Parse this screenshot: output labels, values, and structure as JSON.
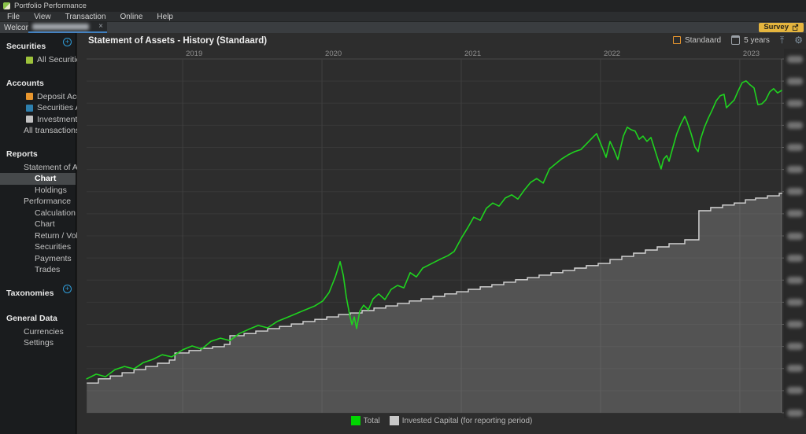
{
  "window": {
    "title": "Portfolio Performance"
  },
  "menu": {
    "items": [
      "File",
      "View",
      "Transaction",
      "Online",
      "Help"
    ]
  },
  "tabs": {
    "welcome_label": "Welcome",
    "active_tab": {
      "label_redacted": true,
      "close_glyph": "×"
    },
    "survey_button": {
      "label": "Survey"
    }
  },
  "sidebar": {
    "sections": [
      {
        "title": "Securities",
        "add_button": true,
        "items": [
          {
            "label": "All Securities",
            "icon": "security-icon",
            "icon_color": "#9dc23b",
            "indent": 1
          }
        ]
      },
      {
        "title": "Accounts",
        "add_button": false,
        "items": [
          {
            "label": "Deposit Accounts",
            "icon": "deposit-account-icon",
            "icon_color": "#e8962e",
            "indent": 1
          },
          {
            "label": "Securities Accounts",
            "icon": "securities-account-icon",
            "icon_color": "#2e80ae",
            "indent": 1
          },
          {
            "label": "Investment Plans",
            "icon": "investment-plan-icon",
            "icon_color": "#c2c2c2",
            "indent": 1
          },
          {
            "label": "All transactions",
            "indent": 1
          }
        ]
      },
      {
        "title": "Reports",
        "add_button": false,
        "items": [
          {
            "label": "Statement of Assets",
            "indent": 1
          },
          {
            "label": "Chart",
            "indent": 2,
            "selected": true
          },
          {
            "label": "Holdings",
            "indent": 2
          },
          {
            "label": "Performance",
            "indent": 1
          },
          {
            "label": "Calculation",
            "indent": 2
          },
          {
            "label": "Chart",
            "indent": 2
          },
          {
            "label": "Return / Volatility",
            "indent": 2
          },
          {
            "label": "Securities",
            "indent": 2
          },
          {
            "label": "Payments",
            "indent": 2
          },
          {
            "label": "Trades",
            "indent": 2
          }
        ]
      },
      {
        "title": "Taxonomies",
        "add_button": true,
        "items": []
      },
      {
        "title": "General Data",
        "add_button": false,
        "items": [
          {
            "label": "Currencies",
            "indent": 1
          },
          {
            "label": "Settings",
            "indent": 1
          }
        ]
      }
    ]
  },
  "chart_panel": {
    "title": "Statement of Assets - History (Standaard)",
    "toolbar": {
      "aggregation": {
        "label": "Standaard",
        "icon": "orange-square-icon"
      },
      "period": {
        "label": "5 years",
        "icon": "calendar-icon"
      },
      "export_icon_glyph": "⤒",
      "settings_icon_glyph": "⚙"
    },
    "legend": [
      {
        "label": "Total",
        "color": "#00d600"
      },
      {
        "label": "Invested Capital (for reporting period)",
        "color": "#c8c8c8"
      }
    ]
  },
  "chart_data": {
    "type": "line",
    "title": "Statement of Assets - History (Standaard)",
    "x_axis": {
      "position": "top",
      "labels": [
        "2019",
        "2020",
        "2021",
        "2022",
        "2023"
      ],
      "range": [
        2018.31,
        2023.3
      ]
    },
    "y_axis": {
      "position": "right",
      "labels_redacted": true,
      "tick_count": 17,
      "unit": "relative level 0-100 (axis values blurred in source)"
    },
    "grid": true,
    "series": [
      {
        "name": "Total",
        "style": "line",
        "color": "#1fd31f",
        "points": [
          [
            2018.311,
            9.6
          ],
          [
            2018.379,
            10.9
          ],
          [
            2018.446,
            10.2
          ],
          [
            2018.514,
            12.2
          ],
          [
            2018.582,
            13.1
          ],
          [
            2018.65,
            12.4
          ],
          [
            2018.718,
            14.2
          ],
          [
            2018.785,
            15.1
          ],
          [
            2018.853,
            16.4
          ],
          [
            2018.921,
            15.8
          ],
          [
            2019.0,
            17.8
          ],
          [
            2019.068,
            18.9
          ],
          [
            2019.136,
            18.0
          ],
          [
            2019.203,
            20.2
          ],
          [
            2019.271,
            21.1
          ],
          [
            2019.339,
            20.4
          ],
          [
            2019.407,
            22.4
          ],
          [
            2019.475,
            23.6
          ],
          [
            2019.542,
            24.7
          ],
          [
            2019.61,
            24.0
          ],
          [
            2019.678,
            25.8
          ],
          [
            2019.746,
            26.9
          ],
          [
            2019.814,
            28.0
          ],
          [
            2019.881,
            29.1
          ],
          [
            2019.949,
            30.2
          ],
          [
            2020.006,
            31.6
          ],
          [
            2020.051,
            34.0
          ],
          [
            2020.096,
            38.4
          ],
          [
            2020.13,
            42.7
          ],
          [
            2020.153,
            38.9
          ],
          [
            2020.175,
            32.7
          ],
          [
            2020.198,
            27.8
          ],
          [
            2020.215,
            24.9
          ],
          [
            2020.232,
            27.1
          ],
          [
            2020.249,
            23.8
          ],
          [
            2020.271,
            28.7
          ],
          [
            2020.299,
            30.4
          ],
          [
            2020.333,
            29.1
          ],
          [
            2020.367,
            32.2
          ],
          [
            2020.407,
            33.6
          ],
          [
            2020.452,
            32.0
          ],
          [
            2020.497,
            34.9
          ],
          [
            2020.542,
            36.0
          ],
          [
            2020.588,
            35.3
          ],
          [
            2020.633,
            39.6
          ],
          [
            2020.678,
            38.4
          ],
          [
            2020.723,
            40.9
          ],
          [
            2020.768,
            41.8
          ],
          [
            2020.814,
            42.7
          ],
          [
            2020.859,
            43.6
          ],
          [
            2020.904,
            44.4
          ],
          [
            2020.949,
            45.6
          ],
          [
            2021.0,
            49.3
          ],
          [
            2021.045,
            52.2
          ],
          [
            2021.09,
            55.3
          ],
          [
            2021.136,
            54.4
          ],
          [
            2021.181,
            57.8
          ],
          [
            2021.226,
            59.3
          ],
          [
            2021.271,
            58.4
          ],
          [
            2021.316,
            60.7
          ],
          [
            2021.362,
            61.6
          ],
          [
            2021.407,
            60.4
          ],
          [
            2021.452,
            62.9
          ],
          [
            2021.497,
            65.1
          ],
          [
            2021.542,
            66.2
          ],
          [
            2021.588,
            64.9
          ],
          [
            2021.633,
            68.9
          ],
          [
            2021.678,
            70.4
          ],
          [
            2021.723,
            71.8
          ],
          [
            2021.768,
            72.9
          ],
          [
            2021.814,
            73.8
          ],
          [
            2021.859,
            74.4
          ],
          [
            2021.904,
            76.2
          ],
          [
            2021.938,
            77.6
          ],
          [
            2021.972,
            78.9
          ],
          [
            2022.011,
            75.1
          ],
          [
            2022.04,
            72.2
          ],
          [
            2022.068,
            76.7
          ],
          [
            2022.096,
            74.4
          ],
          [
            2022.124,
            71.6
          ],
          [
            2022.164,
            78.2
          ],
          [
            2022.192,
            80.7
          ],
          [
            2022.22,
            80.0
          ],
          [
            2022.249,
            79.6
          ],
          [
            2022.277,
            77.3
          ],
          [
            2022.305,
            78.2
          ],
          [
            2022.333,
            76.7
          ],
          [
            2022.362,
            77.8
          ],
          [
            2022.384,
            75.1
          ],
          [
            2022.407,
            72.2
          ],
          [
            2022.435,
            68.9
          ],
          [
            2022.452,
            71.6
          ],
          [
            2022.475,
            72.7
          ],
          [
            2022.492,
            71.1
          ],
          [
            2022.52,
            75.1
          ],
          [
            2022.548,
            78.9
          ],
          [
            2022.576,
            81.6
          ],
          [
            2022.605,
            83.8
          ],
          [
            2022.622,
            82.2
          ],
          [
            2022.65,
            78.9
          ],
          [
            2022.678,
            75.1
          ],
          [
            2022.701,
            73.8
          ],
          [
            2022.718,
            77.3
          ],
          [
            2022.746,
            80.7
          ],
          [
            2022.774,
            83.3
          ],
          [
            2022.802,
            85.6
          ],
          [
            2022.831,
            88.2
          ],
          [
            2022.859,
            89.6
          ],
          [
            2022.887,
            90.0
          ],
          [
            2022.904,
            86.2
          ],
          [
            2022.932,
            87.3
          ],
          [
            2022.96,
            88.4
          ],
          [
            2022.989,
            91.1
          ],
          [
            2023.017,
            93.3
          ],
          [
            2023.045,
            93.8
          ],
          [
            2023.073,
            92.7
          ],
          [
            2023.102,
            91.8
          ],
          [
            2023.13,
            87.1
          ],
          [
            2023.158,
            87.3
          ],
          [
            2023.186,
            88.4
          ],
          [
            2023.215,
            90.7
          ],
          [
            2023.243,
            91.6
          ],
          [
            2023.271,
            90.4
          ],
          [
            2023.3,
            91.1
          ]
        ]
      },
      {
        "name": "Invested Capital (for reporting period)",
        "style": "step-area",
        "color": "#d6d6d6",
        "fill": "rgba(160,160,160,0.33)",
        "points": [
          [
            2018.311,
            8.4
          ],
          [
            2018.395,
            9.6
          ],
          [
            2018.48,
            10.4
          ],
          [
            2018.565,
            11.3
          ],
          [
            2018.65,
            12.2
          ],
          [
            2018.734,
            13.1
          ],
          [
            2018.819,
            14.0
          ],
          [
            2018.904,
            14.9
          ],
          [
            2018.944,
            16.9
          ],
          [
            2019.045,
            17.6
          ],
          [
            2019.13,
            18.2
          ],
          [
            2019.215,
            18.7
          ],
          [
            2019.299,
            19.3
          ],
          [
            2019.339,
            21.8
          ],
          [
            2019.441,
            22.4
          ],
          [
            2019.525,
            23.1
          ],
          [
            2019.61,
            23.8
          ],
          [
            2019.695,
            24.4
          ],
          [
            2019.78,
            25.1
          ],
          [
            2019.864,
            25.8
          ],
          [
            2019.949,
            26.4
          ],
          [
            2020.034,
            27.1
          ],
          [
            2020.119,
            27.8
          ],
          [
            2020.203,
            28.2
          ],
          [
            2020.288,
            28.9
          ],
          [
            2020.373,
            29.6
          ],
          [
            2020.458,
            30.2
          ],
          [
            2020.542,
            30.9
          ],
          [
            2020.627,
            31.6
          ],
          [
            2020.712,
            32.2
          ],
          [
            2020.797,
            32.9
          ],
          [
            2020.881,
            33.6
          ],
          [
            2020.966,
            34.2
          ],
          [
            2021.051,
            34.9
          ],
          [
            2021.136,
            35.6
          ],
          [
            2021.22,
            36.2
          ],
          [
            2021.305,
            36.9
          ],
          [
            2021.39,
            37.6
          ],
          [
            2021.475,
            38.2
          ],
          [
            2021.559,
            38.9
          ],
          [
            2021.644,
            39.6
          ],
          [
            2021.729,
            40.2
          ],
          [
            2021.814,
            40.9
          ],
          [
            2021.898,
            41.6
          ],
          [
            2021.983,
            42.2
          ],
          [
            2022.068,
            43.3
          ],
          [
            2022.153,
            44.2
          ],
          [
            2022.237,
            45.1
          ],
          [
            2022.322,
            46.0
          ],
          [
            2022.407,
            46.9
          ],
          [
            2022.492,
            47.8
          ],
          [
            2022.605,
            48.9
          ],
          [
            2022.706,
            57.1
          ],
          [
            2022.791,
            58.0
          ],
          [
            2022.876,
            58.7
          ],
          [
            2022.96,
            59.3
          ],
          [
            2023.04,
            60.2
          ],
          [
            2023.113,
            60.7
          ],
          [
            2023.198,
            61.3
          ],
          [
            2023.283,
            62.0
          ],
          [
            2023.3,
            62.2
          ]
        ]
      }
    ]
  }
}
